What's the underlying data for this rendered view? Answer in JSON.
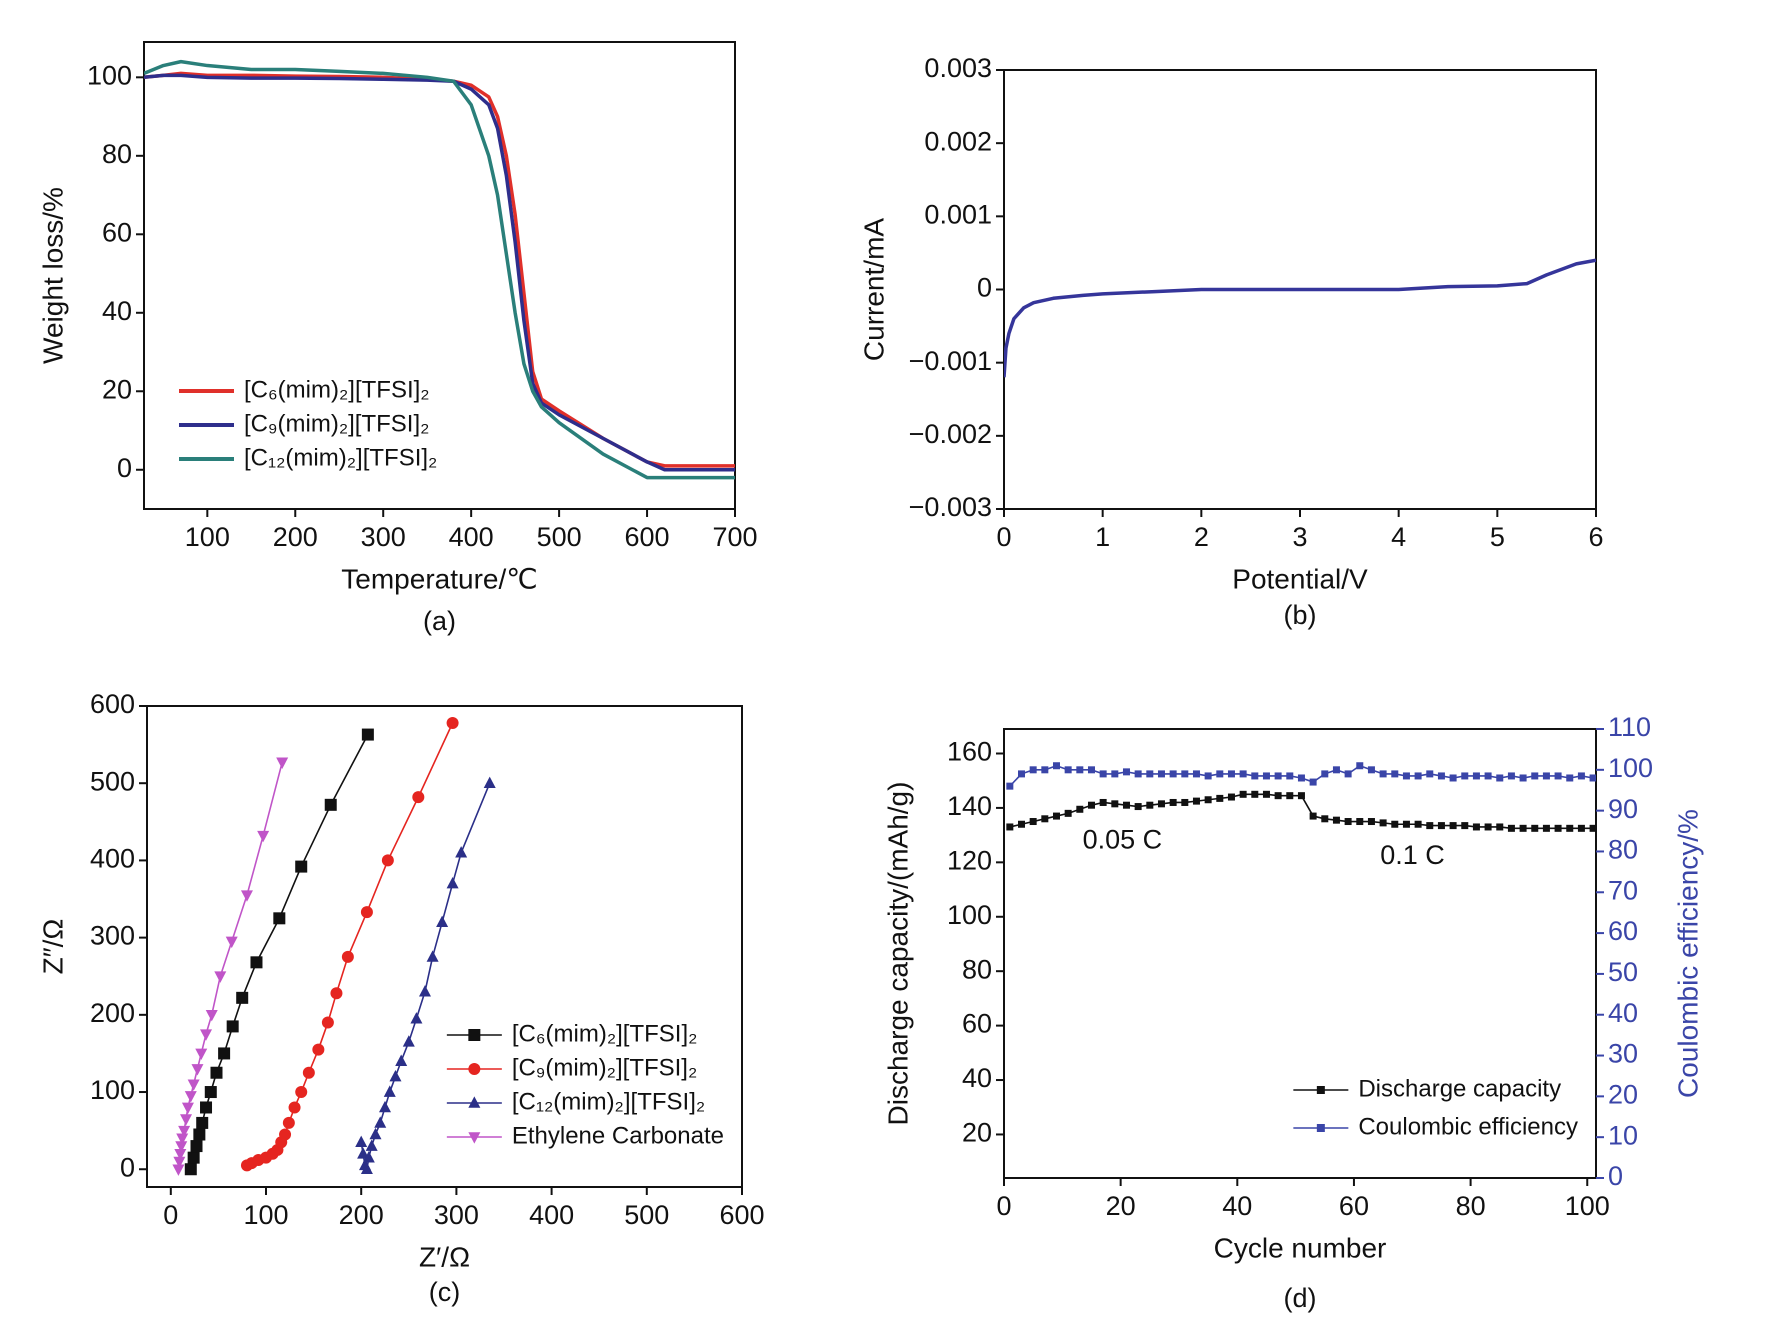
{
  "chart_data": [
    {
      "type": "line",
      "caption": "(a)",
      "x_label": "Temperature/℃",
      "y_label": "Weight loss/%",
      "xlim": [
        28,
        700
      ],
      "ylim": [
        -10,
        109
      ],
      "xticks": [
        100,
        200,
        300,
        400,
        500,
        600,
        700
      ],
      "yticks": [
        0,
        20,
        40,
        60,
        80,
        100
      ],
      "grid": false,
      "legend": "lower left",
      "x": [
        28,
        50,
        70,
        100,
        150,
        200,
        250,
        300,
        350,
        380,
        400,
        420,
        430,
        440,
        450,
        460,
        470,
        480,
        500,
        550,
        600,
        620,
        650,
        700
      ],
      "series": [
        {
          "name": "[C₆(mim)₂][TFSI]₂",
          "color": "#e0302a",
          "values": [
            100,
            100.5,
            101,
            100.5,
            100.5,
            100.3,
            100.2,
            100,
            99.5,
            99,
            98,
            95,
            90,
            80,
            65,
            45,
            25,
            18,
            15,
            8,
            2,
            1,
            1,
            1
          ]
        },
        {
          "name": "[C₉(mim)₂][TFSI]₂",
          "color": "#2e2e8c",
          "values": [
            100,
            100.5,
            100.5,
            100,
            99.8,
            99.8,
            99.7,
            99.5,
            99.3,
            99,
            97,
            93,
            87,
            75,
            58,
            38,
            22,
            17,
            14,
            8,
            2,
            0,
            0,
            0
          ]
        },
        {
          "name": "[C₁₂(mim)₂][TFSI]₂",
          "color": "#2a7f7a",
          "values": [
            101,
            103,
            104,
            103,
            102,
            102,
            101.5,
            101,
            100,
            99,
            93,
            80,
            70,
            55,
            40,
            27,
            20,
            16,
            12,
            4,
            -2,
            -2,
            -2,
            -2
          ]
        }
      ]
    },
    {
      "type": "line",
      "caption": "(b)",
      "x_label": "Potential/V",
      "y_label": "Current/mA",
      "xlim": [
        0,
        6
      ],
      "ylim": [
        -0.003,
        0.003
      ],
      "xticks": [
        0,
        1,
        2,
        3,
        4,
        5,
        6
      ],
      "yticks": [
        {
          "value": -0.003,
          "label": "−0.003"
        },
        {
          "value": -0.002,
          "label": "−0.002"
        },
        {
          "value": -0.001,
          "label": "−0.001"
        },
        0,
        0.001,
        0.002,
        0.003
      ],
      "grid": false,
      "x": [
        0,
        0.02,
        0.05,
        0.1,
        0.2,
        0.3,
        0.5,
        0.8,
        1,
        1.5,
        2,
        3,
        4,
        4.5,
        5,
        5.3,
        5.5,
        5.8,
        6
      ],
      "series": [
        {
          "color": "#35359a",
          "values": [
            -0.0012,
            -0.0008,
            -0.0006,
            -0.0004,
            -0.00025,
            -0.00018,
            -0.00012,
            -8e-05,
            -6e-05,
            -3e-05,
            0,
            0,
            0,
            4e-05,
            5e-05,
            8e-05,
            0.0002,
            0.00035,
            0.0004
          ]
        }
      ]
    },
    {
      "type": "line",
      "caption": "(c)",
      "x_label": "Z′/Ω",
      "y_label": "Z″/Ω",
      "xlim": [
        -25,
        600
      ],
      "ylim": [
        -23,
        600
      ],
      "xticks": [
        0,
        100,
        200,
        300,
        400,
        500,
        600
      ],
      "yticks": [
        0,
        100,
        200,
        300,
        400,
        500,
        600
      ],
      "grid": false,
      "legend": "lower right",
      "series": [
        {
          "name": "[C₆(mim)₂][TFSI]₂",
          "color": "#111111",
          "marker": "square",
          "x": [
            21,
            24,
            27,
            30,
            33,
            37,
            42,
            48,
            56,
            65,
            75,
            90,
            114,
            137,
            168,
            207
          ],
          "values": [
            0,
            15,
            30,
            45,
            60,
            80,
            100,
            125,
            150,
            185,
            222,
            268,
            325,
            392,
            472,
            563
          ]
        },
        {
          "name": "[C₉(mim)₂][TFSI]₂",
          "color": "#e52520",
          "marker": "circle",
          "x": [
            80,
            85,
            92,
            100,
            107,
            112,
            116,
            120,
            124,
            130,
            137,
            145,
            155,
            165,
            174,
            186,
            206,
            228,
            260,
            296
          ],
          "values": [
            5,
            8,
            12,
            15,
            20,
            25,
            35,
            45,
            60,
            80,
            100,
            125,
            155,
            190,
            228,
            275,
            333,
            400,
            482,
            578
          ]
        },
        {
          "name": "[C₁₂(mim)₂][TFSI]₂",
          "color": "#2b2f88",
          "marker": "triangle-up",
          "x": [
            200,
            202,
            204,
            206,
            208,
            211,
            215,
            220,
            225,
            230,
            236,
            242,
            250,
            258,
            267,
            275,
            285,
            296,
            305,
            335
          ],
          "values": [
            35,
            20,
            5,
            0,
            15,
            30,
            45,
            60,
            80,
            100,
            120,
            140,
            165,
            195,
            230,
            275,
            320,
            370,
            410,
            500
          ]
        },
        {
          "name": "Ethylene Carbonate",
          "color": "#c055c8",
          "marker": "triangle-down",
          "x": [
            8,
            9,
            10,
            11,
            12,
            14,
            16,
            18,
            21,
            24,
            28,
            32,
            37,
            43,
            52,
            64,
            80,
            97,
            117
          ],
          "values": [
            0,
            10,
            20,
            30,
            40,
            50,
            65,
            80,
            95,
            110,
            130,
            150,
            175,
            200,
            250,
            295,
            355,
            432,
            527
          ]
        }
      ]
    },
    {
      "type": "line",
      "caption": "(d)",
      "x_label": "Cycle number",
      "y_label": "Discharge capacity/(mAh/g)",
      "y2_label": "Coulombic efficiency/%",
      "xlim": [
        0,
        101.5
      ],
      "ylim": [
        4,
        169
      ],
      "y2lim": [
        0,
        110
      ],
      "xticks": [
        0,
        20,
        40,
        60,
        80,
        100
      ],
      "yticks": [
        20,
        40,
        60,
        80,
        100,
        120,
        140,
        160
      ],
      "y2ticks": [
        0,
        10,
        20,
        30,
        40,
        50,
        60,
        70,
        80,
        90,
        100,
        110
      ],
      "grid": false,
      "legend": "lower right",
      "annotations": [
        "0.05 C",
        "0.1 C"
      ],
      "x": [
        1,
        3,
        5,
        7,
        9,
        11,
        13,
        15,
        17,
        19,
        21,
        23,
        25,
        27,
        29,
        31,
        33,
        35,
        37,
        39,
        41,
        43,
        45,
        47,
        49,
        51,
        53,
        55,
        57,
        59,
        61,
        63,
        65,
        67,
        69,
        71,
        73,
        75,
        77,
        79,
        81,
        83,
        85,
        87,
        89,
        91,
        93,
        95,
        97,
        99,
        101
      ],
      "series": [
        {
          "name": "Discharge capacity",
          "color": "#111111",
          "marker": "square",
          "values": [
            133,
            134,
            135,
            136,
            137,
            138,
            139.5,
            141,
            142,
            141.5,
            141,
            140.5,
            141,
            141.5,
            142,
            142,
            142.5,
            143,
            143.5,
            144,
            145,
            145,
            145,
            144.5,
            144.5,
            144.5,
            137,
            136,
            135.5,
            135,
            135,
            135,
            134.5,
            134,
            134,
            134,
            133.5,
            133.5,
            133.5,
            133.5,
            133,
            133,
            133,
            132.5,
            132.5,
            132.5,
            132.5,
            132.5,
            132.5,
            132.5,
            132.5
          ]
        },
        {
          "name": "Coulombic efficiency",
          "color": "#3a45a8",
          "marker": "square",
          "axis": "y2",
          "values": [
            96,
            99,
            100,
            100,
            101,
            100,
            100,
            100,
            99,
            99,
            99.5,
            99,
            99,
            99,
            99,
            99,
            99,
            98.5,
            99,
            99,
            99,
            98.5,
            98.5,
            98.5,
            98.5,
            98,
            97,
            99,
            100,
            99,
            101,
            100,
            99,
            99,
            98.5,
            98.5,
            99,
            98.5,
            98,
            98.5,
            98.5,
            98.5,
            98,
            98.5,
            98,
            98.5,
            98.5,
            98.5,
            98,
            98.5,
            98
          ]
        }
      ]
    }
  ]
}
